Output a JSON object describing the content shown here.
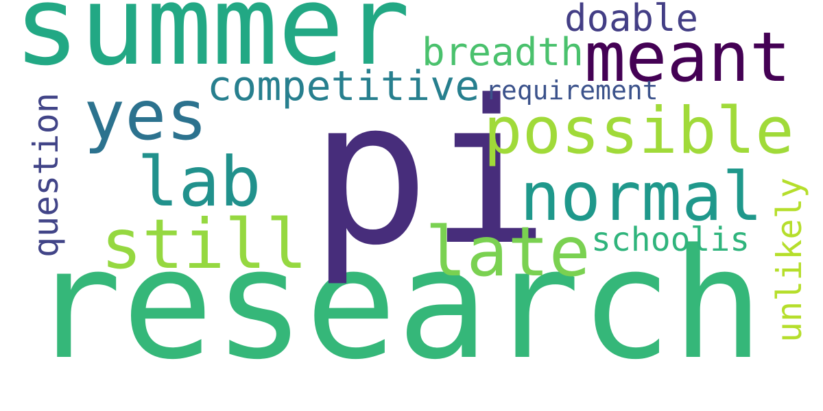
{
  "cloud": {
    "background": "#ffffff",
    "words": [
      {
        "text": "research",
        "color": "#35b779"
      },
      {
        "text": "pi",
        "color": "#472d7b"
      },
      {
        "text": "summer",
        "color": "#22a884"
      },
      {
        "text": "meant",
        "color": "#440154"
      },
      {
        "text": "possible",
        "color": "#a0da39"
      },
      {
        "text": "normal",
        "color": "#1f988b"
      },
      {
        "text": "yes",
        "color": "#2c728e"
      },
      {
        "text": "lab",
        "color": "#21918c"
      },
      {
        "text": "still",
        "color": "#95d840"
      },
      {
        "text": "late",
        "color": "#7ad151"
      },
      {
        "text": "competitive",
        "color": "#277f8e"
      },
      {
        "text": "breadth",
        "color": "#4ac16d"
      },
      {
        "text": "doable",
        "color": "#433e85"
      },
      {
        "text": "requirement",
        "color": "#3b528b"
      },
      {
        "text": "schoolis",
        "color": "#2fb47c"
      },
      {
        "text": "question",
        "color": "#414487"
      },
      {
        "text": "unlikely",
        "color": "#b5de2b"
      }
    ]
  }
}
